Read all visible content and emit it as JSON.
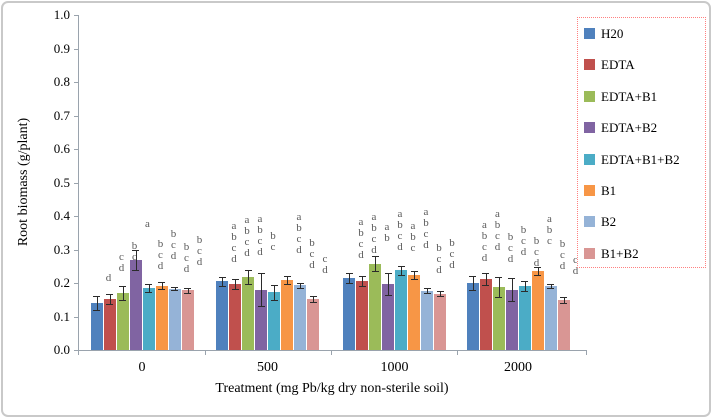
{
  "figure": {
    "background": "#ffffff",
    "border_color": "#c9c9c9",
    "axis_color": "#9aa3ad",
    "error_bar_color": "#2b2b2b",
    "sig_letter_color": "#595959",
    "legend_border_color": "#ff8080"
  },
  "chart_data": {
    "type": "bar",
    "title": "",
    "xlabel": "Treatment (mg Pb/kg dry non-sterile soil)",
    "ylabel": "Root biomass (g/plant)",
    "ylim": [
      0.0,
      1.0
    ],
    "y_tick_step": 0.1,
    "y_tick_labels": [
      "0.0",
      "0.1",
      "0.2",
      "0.3",
      "0.4",
      "0.5",
      "0.6",
      "0.7",
      "0.8",
      "0.9",
      "1.0"
    ],
    "categories": [
      "0",
      "500",
      "1000",
      "2000"
    ],
    "grid": false,
    "error_bars": true,
    "legend_position": "right",
    "series": [
      {
        "name": "H20",
        "color": "#4F81BD",
        "values": [
          0.14,
          0.205,
          0.215,
          0.2
        ],
        "errors": [
          0.022,
          0.013,
          0.016,
          0.02
        ],
        "sig_letters": [
          [
            "d"
          ],
          [
            "a",
            "b",
            "c",
            "d"
          ],
          [
            "a",
            "b",
            "c",
            "d"
          ],
          [
            "a",
            "b",
            "c",
            "d"
          ]
        ]
      },
      {
        "name": "EDTA",
        "color": "#C0504D",
        "values": [
          0.152,
          0.198,
          0.205,
          0.213
        ],
        "errors": [
          0.015,
          0.015,
          0.015,
          0.018
        ],
        "sig_letters": [
          [
            "c",
            "d"
          ],
          [
            "a",
            "b",
            "c",
            "d"
          ],
          [
            "a",
            "b",
            "c",
            "d"
          ],
          [
            "a",
            "b",
            "c",
            "d"
          ]
        ]
      },
      {
        "name": "EDTA+B1",
        "color": "#9BBB59",
        "values": [
          0.17,
          0.218,
          0.258,
          0.187
        ],
        "errors": [
          0.022,
          0.02,
          0.022,
          0.03
        ],
        "sig_letters": [
          [
            "b",
            "c",
            "d"
          ],
          [
            "a",
            "b",
            "c",
            "d"
          ],
          [
            "a",
            "b"
          ],
          [
            "b",
            "c",
            "d"
          ]
        ]
      },
      {
        "name": "EDTA+B2",
        "color": "#8064A2",
        "values": [
          0.27,
          0.18,
          0.196,
          0.18
        ],
        "errors": [
          0.03,
          0.05,
          0.033,
          0.035
        ],
        "sig_letters": [
          [
            "a"
          ],
          [
            "b",
            "c"
          ],
          [
            "a",
            "b",
            "c",
            "d"
          ],
          [
            "b",
            "c",
            "d"
          ]
        ]
      },
      {
        "name": "EDTA+B1+B2",
        "color": "#4BACC6",
        "values": [
          0.186,
          0.172,
          0.238,
          0.19
        ],
        "errors": [
          0.012,
          0.022,
          0.013,
          0.015
        ],
        "sig_letters": [
          [
            "b",
            "c",
            "d"
          ],
          [],
          [
            "a",
            "b",
            "c"
          ],
          [
            "b",
            "c",
            "d"
          ]
        ]
      },
      {
        "name": "B1",
        "color": "#F79646",
        "values": [
          0.192,
          0.208,
          0.224,
          0.237
        ],
        "errors": [
          0.01,
          0.012,
          0.012,
          0.012
        ],
        "sig_letters": [
          [
            "b",
            "c",
            "d"
          ],
          [
            "a",
            "b",
            "c",
            "d"
          ],
          [
            "a",
            "b",
            "c",
            "d"
          ],
          [
            "a",
            "b",
            "c"
          ]
        ]
      },
      {
        "name": "B2",
        "color": "#95B3D7",
        "values": [
          0.183,
          0.193,
          0.177,
          0.19
        ],
        "errors": [
          0.005,
          0.008,
          0.008,
          0.006
        ],
        "sig_letters": [
          [
            "b",
            "c",
            "d"
          ],
          [
            "b",
            "c",
            "d"
          ],
          [
            "b",
            "c",
            "d"
          ],
          [
            "b",
            "c",
            "d"
          ]
        ]
      },
      {
        "name": "B1+B2",
        "color": "#D99694",
        "values": [
          0.178,
          0.152,
          0.168,
          0.149
        ],
        "errors": [
          0.008,
          0.008,
          0.008,
          0.008
        ],
        "sig_letters": [
          [
            "b",
            "c",
            "d"
          ],
          [
            "c",
            "d"
          ],
          [
            "b",
            "c",
            "d"
          ],
          [
            "c",
            "d"
          ]
        ]
      }
    ]
  }
}
